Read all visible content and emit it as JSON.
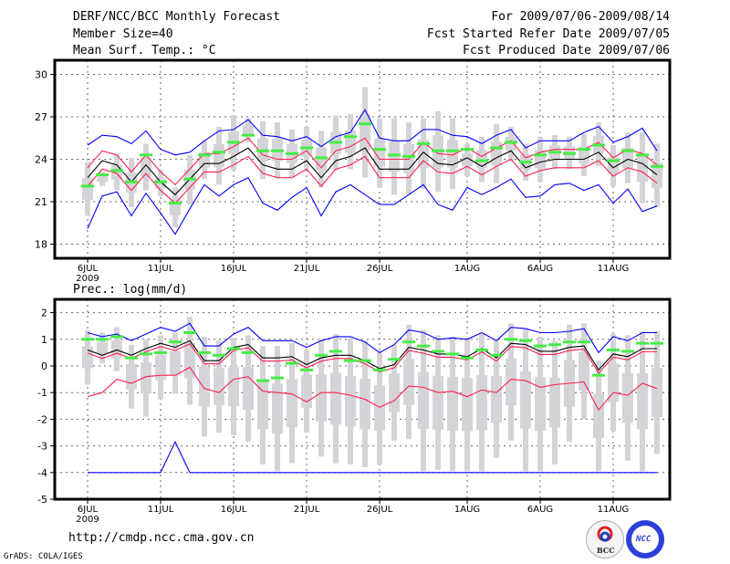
{
  "header": {
    "title": "DERF/NCC/BCC Monthly Forecast",
    "member_size": "Member Size=40",
    "variable": "Mean Surf. Temp.: °C",
    "period": "For 2009/07/06-2009/08/14",
    "fcst_started": "Fcst Started Refer Date 2009/07/05",
    "fcst_produced": "Fcst Produced Date 2009/07/06"
  },
  "footer": {
    "url": "http://cmdp.ncc.cma.gov.cn",
    "credit": "GrADS: COLA/IGES",
    "logo_bcc": "BCC",
    "logo_ncc": "NCC"
  },
  "colors": {
    "envelope": "#0000ff",
    "spread": "#ff1f4f",
    "mean": "#000000",
    "observed": "#44ee44",
    "ensemble_box": "#d4d4d8"
  },
  "chart_data": [
    {
      "type": "line",
      "title": "Mean Surf. Temp.: °C",
      "xlabel": "",
      "ylabel": "",
      "ylim": [
        17,
        31
      ],
      "yticks": [
        18,
        21,
        24,
        27,
        30
      ],
      "ytick_labels": [
        "18",
        "21",
        "24",
        "27",
        "30"
      ],
      "x_start": "2009-07-06",
      "n_days": 40,
      "xticks": [
        {
          "day": 0,
          "label": "6JUL"
        },
        {
          "day": 5,
          "label": "11JUL"
        },
        {
          "day": 10,
          "label": "16JUL"
        },
        {
          "day": 15,
          "label": "21JUL"
        },
        {
          "day": 20,
          "label": "26JUL"
        },
        {
          "day": 26,
          "label": "1AUG"
        },
        {
          "day": 31,
          "label": "6AUG"
        },
        {
          "day": 36,
          "label": "11AUG"
        }
      ],
      "year_label": "2009",
      "grid": true,
      "series": [
        {
          "name": "max",
          "color": "#0000ff",
          "values": [
            25.0,
            25.7,
            25.6,
            25.1,
            26.0,
            24.7,
            24.3,
            24.5,
            25.3,
            26.0,
            26.1,
            26.8,
            25.7,
            25.6,
            25.3,
            25.6,
            24.9,
            25.6,
            25.9,
            27.5,
            25.5,
            25.3,
            25.3,
            26.1,
            26.1,
            25.7,
            25.6,
            25.1,
            25.7,
            26.1,
            24.8,
            25.3,
            25.3,
            25.3,
            25.9,
            26.3,
            25.2,
            25.6,
            26.2,
            24.6
          ]
        },
        {
          "name": "upper",
          "color": "#ff1f4f",
          "values": [
            23.4,
            24.6,
            24.3,
            23.1,
            24.3,
            23.1,
            22.2,
            23.3,
            24.4,
            24.4,
            24.9,
            25.5,
            24.3,
            24.0,
            24.0,
            24.6,
            23.4,
            24.6,
            24.9,
            25.5,
            24.0,
            24.0,
            24.0,
            25.2,
            24.4,
            24.3,
            24.8,
            24.2,
            24.8,
            25.3,
            24.1,
            24.5,
            24.7,
            24.7,
            24.7,
            25.2,
            24.1,
            24.7,
            24.4,
            23.6
          ]
        },
        {
          "name": "mean",
          "color": "#000000",
          "values": [
            22.7,
            23.9,
            23.6,
            22.4,
            23.6,
            22.4,
            21.5,
            22.6,
            23.7,
            23.7,
            24.2,
            24.8,
            23.6,
            23.3,
            23.3,
            23.9,
            22.7,
            23.9,
            24.2,
            24.8,
            23.3,
            23.3,
            23.3,
            24.5,
            23.7,
            23.6,
            24.1,
            23.5,
            24.1,
            24.6,
            23.4,
            23.8,
            24.0,
            24.0,
            24.0,
            24.5,
            23.4,
            24.0,
            23.7,
            22.9
          ]
        },
        {
          "name": "lower",
          "color": "#ff1f4f",
          "values": [
            22.1,
            23.3,
            23.0,
            21.8,
            23.0,
            21.8,
            20.9,
            22.0,
            23.1,
            23.1,
            23.6,
            24.2,
            23.0,
            22.7,
            22.7,
            23.3,
            22.1,
            23.3,
            23.6,
            24.2,
            22.7,
            22.7,
            22.7,
            23.9,
            23.1,
            23.0,
            23.5,
            22.9,
            23.5,
            24.0,
            22.8,
            23.2,
            23.4,
            23.4,
            23.4,
            23.9,
            22.8,
            23.4,
            23.1,
            22.3
          ]
        },
        {
          "name": "min",
          "color": "#0000ff",
          "values": [
            19.1,
            21.4,
            21.7,
            20.0,
            21.6,
            20.2,
            18.7,
            20.5,
            22.2,
            21.4,
            22.2,
            22.7,
            20.9,
            20.4,
            21.3,
            22.0,
            20.0,
            21.7,
            22.2,
            21.5,
            20.8,
            20.8,
            21.5,
            22.2,
            20.8,
            20.4,
            22.0,
            21.5,
            22.0,
            22.6,
            21.3,
            21.4,
            22.2,
            22.3,
            21.8,
            22.2,
            20.9,
            21.9,
            20.3,
            20.7
          ]
        }
      ],
      "observed": [
        22.1,
        22.9,
        23.2,
        22.4,
        24.3,
        22.4,
        20.9,
        22.6,
        24.3,
        24.5,
        25.2,
        25.7,
        24.6,
        24.6,
        24.4,
        24.8,
        24.1,
        25.2,
        25.6,
        26.5,
        24.7,
        24.3,
        24.2,
        25.1,
        24.6,
        24.6,
        24.7,
        23.9,
        24.8,
        25.2,
        23.8,
        24.3,
        24.5,
        24.4,
        24.7,
        25.0,
        23.9,
        24.6,
        24.3,
        23.5
      ],
      "ensemble_high": [
        23.8,
        23.1,
        24.4,
        24.1,
        25.1,
        23.2,
        22.0,
        24.3,
        25.3,
        26.3,
        27.1,
        26.9,
        26.7,
        26.6,
        26.1,
        26.3,
        26.0,
        27.1,
        27.2,
        29.1,
        26.9,
        26.9,
        26.6,
        26.9,
        27.4,
        26.9,
        25.1,
        25.6,
        26.5,
        26.3,
        25.1,
        25.6,
        25.7,
        25.6,
        25.8,
        26.6,
        25.0,
        25.9,
        25.9,
        25.1
      ],
      "ensemble_low": [
        20.0,
        22.1,
        21.8,
        20.6,
        21.8,
        21.4,
        19.2,
        20.8,
        22.6,
        22.2,
        23.2,
        25.2,
        22.6,
        22.7,
        22.7,
        23.3,
        22.0,
        23.2,
        23.3,
        22.7,
        22.0,
        21.5,
        21.5,
        21.9,
        21.7,
        21.9,
        22.8,
        22.4,
        22.3,
        23.9,
        22.5,
        22.4,
        23.3,
        23.3,
        22.8,
        23.5,
        22.1,
        22.3,
        20.9,
        20.6
      ]
    },
    {
      "type": "line",
      "title": "Prec.: log(mm/d)",
      "xlabel": "",
      "ylabel": "",
      "ylim": [
        -5,
        2.5
      ],
      "yticks": [
        -5,
        -4,
        -3,
        -2,
        -1,
        0,
        1,
        2
      ],
      "ytick_labels": [
        "-5",
        "-4",
        "-3",
        "-2",
        "-1",
        "0",
        "1",
        "2"
      ],
      "x_start": "2009-07-06",
      "n_days": 40,
      "xticks": [
        {
          "day": 0,
          "label": "6JUL"
        },
        {
          "day": 5,
          "label": "11JUL"
        },
        {
          "day": 10,
          "label": "16JUL"
        },
        {
          "day": 15,
          "label": "21JUL"
        },
        {
          "day": 20,
          "label": "26JUL"
        },
        {
          "day": 26,
          "label": "1AUG"
        },
        {
          "day": 31,
          "label": "6AUG"
        },
        {
          "day": 36,
          "label": "11AUG"
        }
      ],
      "year_label": "2009",
      "grid": true,
      "series": [
        {
          "name": "max",
          "color": "#0000ff",
          "values": [
            1.25,
            1.1,
            1.2,
            0.95,
            1.2,
            1.45,
            1.3,
            1.6,
            0.75,
            0.75,
            1.2,
            1.45,
            0.95,
            0.95,
            0.95,
            0.7,
            0.95,
            1.1,
            1.1,
            0.9,
            0.5,
            0.8,
            1.35,
            1.25,
            1.0,
            1.05,
            1.0,
            1.25,
            0.95,
            1.45,
            1.4,
            1.25,
            1.25,
            1.3,
            1.4,
            0.5,
            1.1,
            0.95,
            1.25,
            1.25
          ]
        },
        {
          "name": "upper",
          "color": "#ff1f4f",
          "values": [
            0.48,
            0.28,
            0.48,
            0.28,
            0.53,
            0.73,
            0.58,
            0.83,
            0.08,
            0.08,
            0.58,
            0.68,
            0.18,
            0.18,
            0.23,
            -0.07,
            0.18,
            0.28,
            0.28,
            0.08,
            -0.22,
            -0.07,
            0.58,
            0.48,
            0.33,
            0.33,
            0.23,
            0.53,
            0.18,
            0.73,
            0.68,
            0.43,
            0.43,
            0.58,
            0.63,
            -0.27,
            0.33,
            0.23,
            0.53,
            0.53
          ]
        },
        {
          "name": "mean",
          "color": "#000000",
          "values": [
            0.6,
            0.4,
            0.6,
            0.4,
            0.65,
            0.85,
            0.7,
            0.95,
            0.2,
            0.2,
            0.7,
            0.8,
            0.3,
            0.3,
            0.35,
            0.05,
            0.3,
            0.4,
            0.4,
            0.2,
            -0.1,
            0.05,
            0.7,
            0.6,
            0.45,
            0.45,
            0.35,
            0.65,
            0.3,
            0.85,
            0.8,
            0.55,
            0.55,
            0.7,
            0.75,
            -0.15,
            0.45,
            0.35,
            0.65,
            0.65
          ]
        },
        {
          "name": "lower",
          "color": "#ff1f4f",
          "values": [
            -1.15,
            -1.0,
            -0.5,
            -0.65,
            -0.4,
            -0.35,
            -0.35,
            -0.05,
            -0.85,
            -1.0,
            -0.5,
            -0.4,
            -0.95,
            -1.0,
            -1.05,
            -1.35,
            -1.0,
            -1.0,
            -1.1,
            -1.25,
            -1.55,
            -1.3,
            -0.75,
            -0.8,
            -1.0,
            -0.95,
            -1.15,
            -0.9,
            -1.0,
            -0.5,
            -0.55,
            -0.8,
            -0.7,
            -0.65,
            -0.6,
            -1.65,
            -1.0,
            -1.1,
            -0.65,
            -0.85
          ]
        },
        {
          "name": "min",
          "color": "#0000ff",
          "values": [
            -4,
            -4,
            -4,
            -4,
            -4,
            -4,
            -2.85,
            -4,
            -4,
            -4,
            -4,
            -4,
            -4,
            -4,
            -4,
            -4,
            -4,
            -4,
            -4,
            -4,
            -4,
            -4,
            -4,
            -4,
            -4,
            -4,
            -4,
            -4,
            -4,
            -4,
            -4,
            -4,
            -4,
            -4,
            -4,
            -4,
            -4,
            -4,
            -4,
            -4
          ]
        }
      ],
      "observed": [
        1.0,
        1.0,
        1.1,
        0.3,
        0.45,
        0.5,
        0.9,
        1.25,
        0.5,
        0.4,
        0.65,
        0.5,
        -0.55,
        -0.45,
        0.1,
        -0.15,
        0.4,
        0.55,
        0.2,
        0.2,
        -0.15,
        0.25,
        0.9,
        0.75,
        0.55,
        0.45,
        0.3,
        0.6,
        0.4,
        1.0,
        0.95,
        0.75,
        0.8,
        0.9,
        0.9,
        -0.35,
        0.6,
        0.55,
        0.85,
        0.85
      ],
      "ensemble_high": [
        1.35,
        1.25,
        1.45,
        0.8,
        1.0,
        1.15,
        1.25,
        1.85,
        1.1,
        0.95,
        1.05,
        1.15,
        0.75,
        0.75,
        0.85,
        0.6,
        1.0,
        1.2,
        1.05,
        0.95,
        0.55,
        0.8,
        1.55,
        1.35,
        1.15,
        1.1,
        1.05,
        1.2,
        0.95,
        1.6,
        1.4,
        1.1,
        0.95,
        1.55,
        1.6,
        0.2,
        1.2,
        1.15,
        1.3,
        1.3
      ],
      "ensemble_low": [
        -0.7,
        0.1,
        -0.2,
        -1.6,
        -1.9,
        -1.25,
        -1.05,
        -1.45,
        -2.65,
        -2.5,
        -2.6,
        -2.85,
        -3.7,
        -3.95,
        -3.65,
        -2.5,
        -3.4,
        -3.65,
        -3.7,
        -3.8,
        -3.7,
        -2.8,
        -2.75,
        -3.95,
        -3.9,
        -3.95,
        -3.95,
        -3.95,
        -3.45,
        -2.8,
        -3.95,
        -3.95,
        -3.7,
        -2.85,
        -2.0,
        -3.95,
        -2.45,
        -3.55,
        -3.95,
        -3.3
      ]
    }
  ]
}
